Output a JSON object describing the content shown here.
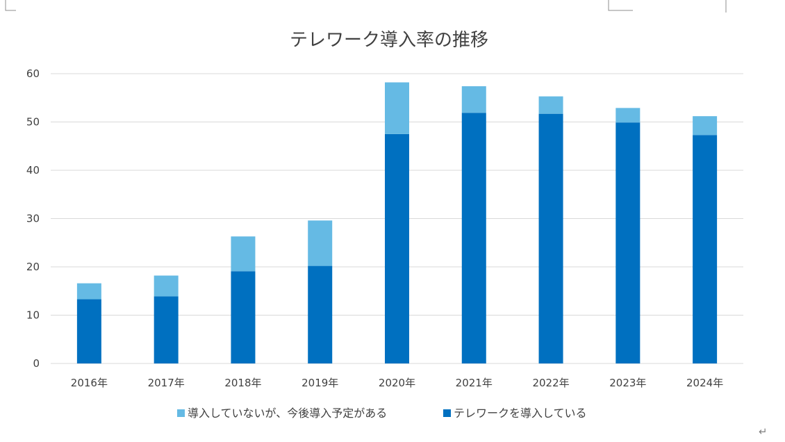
{
  "page": {
    "return_mark": "↵"
  },
  "chart_data": {
    "type": "bar",
    "stacked": true,
    "title": "テレワーク導入率の推移",
    "xlabel": "",
    "ylabel": "",
    "categories": [
      "2016年",
      "2017年",
      "2018年",
      "2019年",
      "2020年",
      "2021年",
      "2022年",
      "2023年",
      "2024年"
    ],
    "ylim": [
      0,
      60
    ],
    "yticks": [
      0,
      10,
      20,
      30,
      40,
      50,
      60
    ],
    "grid": true,
    "legend_position": "bottom",
    "series": [
      {
        "name": "テレワークを導入している",
        "color": "#0070c0",
        "values": [
          13.3,
          13.9,
          19.1,
          20.2,
          47.5,
          51.9,
          51.7,
          49.9,
          47.3
        ]
      },
      {
        "name": "導入していないが、今後導入予定がある",
        "color": "#65bae4",
        "values": [
          3.3,
          4.3,
          7.2,
          9.4,
          10.7,
          5.5,
          3.6,
          3.0,
          3.9
        ]
      }
    ],
    "legend_order": [
      1,
      0
    ]
  }
}
